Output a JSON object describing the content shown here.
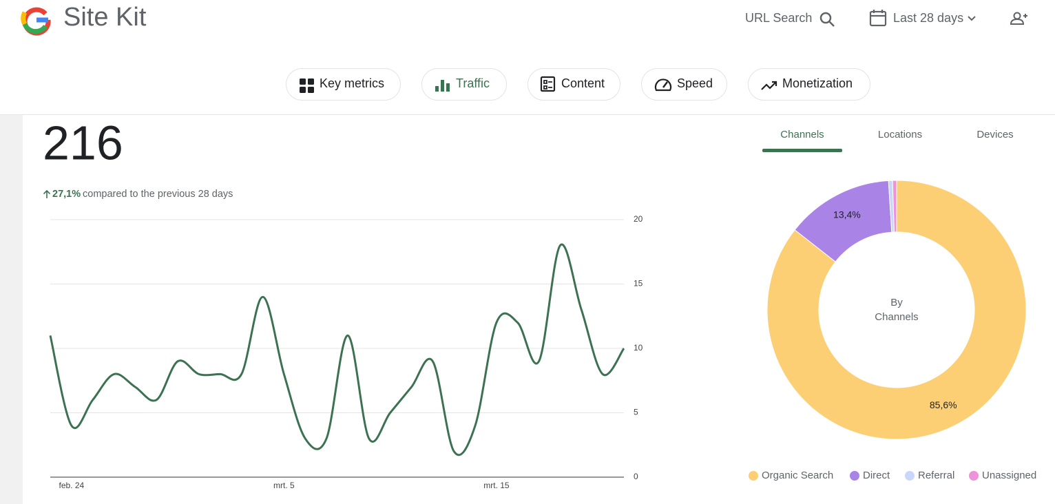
{
  "header": {
    "title": "Site Kit",
    "search": "URL Search",
    "date_range": "Last 28 days"
  },
  "nav": {
    "items": [
      {
        "label": "Key metrics"
      },
      {
        "label": "Traffic"
      },
      {
        "label": "Content"
      },
      {
        "label": "Speed"
      },
      {
        "label": "Monetization"
      }
    ],
    "active": "Traffic"
  },
  "summary": {
    "value": "216",
    "change": "27,1%",
    "comparison": "compared to the previous 28 days"
  },
  "tabs": {
    "items": [
      "Channels",
      "Locations",
      "Devices"
    ],
    "active": "Channels"
  },
  "chart_data": [
    {
      "type": "line",
      "categories": [
        null,
        "feb. 24",
        null,
        null,
        null,
        null,
        null,
        null,
        null,
        null,
        null,
        "mrt. 5",
        null,
        null,
        null,
        null,
        null,
        null,
        null,
        null,
        null,
        "mrt. 15",
        null,
        null,
        null,
        null,
        null,
        null
      ],
      "values": [
        11,
        4,
        6,
        8,
        7,
        6,
        9,
        8,
        8,
        8,
        14,
        8,
        3,
        3,
        11,
        3,
        5,
        7,
        9,
        2,
        4,
        12,
        12,
        9,
        18,
        13,
        8,
        10
      ],
      "color": "#3c7251",
      "ylim": [
        0,
        20
      ],
      "yticks": [
        0,
        5,
        10,
        15,
        20
      ],
      "grid": true
    },
    {
      "type": "pie",
      "center_text": [
        "By",
        "Channels"
      ],
      "categories": [
        "Organic Search",
        "Direct",
        "Referral",
        "Unassigned"
      ],
      "values": [
        85.6,
        13.4,
        0.5,
        0.5
      ],
      "value_labels": [
        "85,6%",
        "13,4%",
        null,
        null
      ],
      "colors": [
        "#fdcf74",
        "#a983e6",
        "#c9d8fa",
        "#ee92da"
      ],
      "legend": "bottom"
    }
  ]
}
